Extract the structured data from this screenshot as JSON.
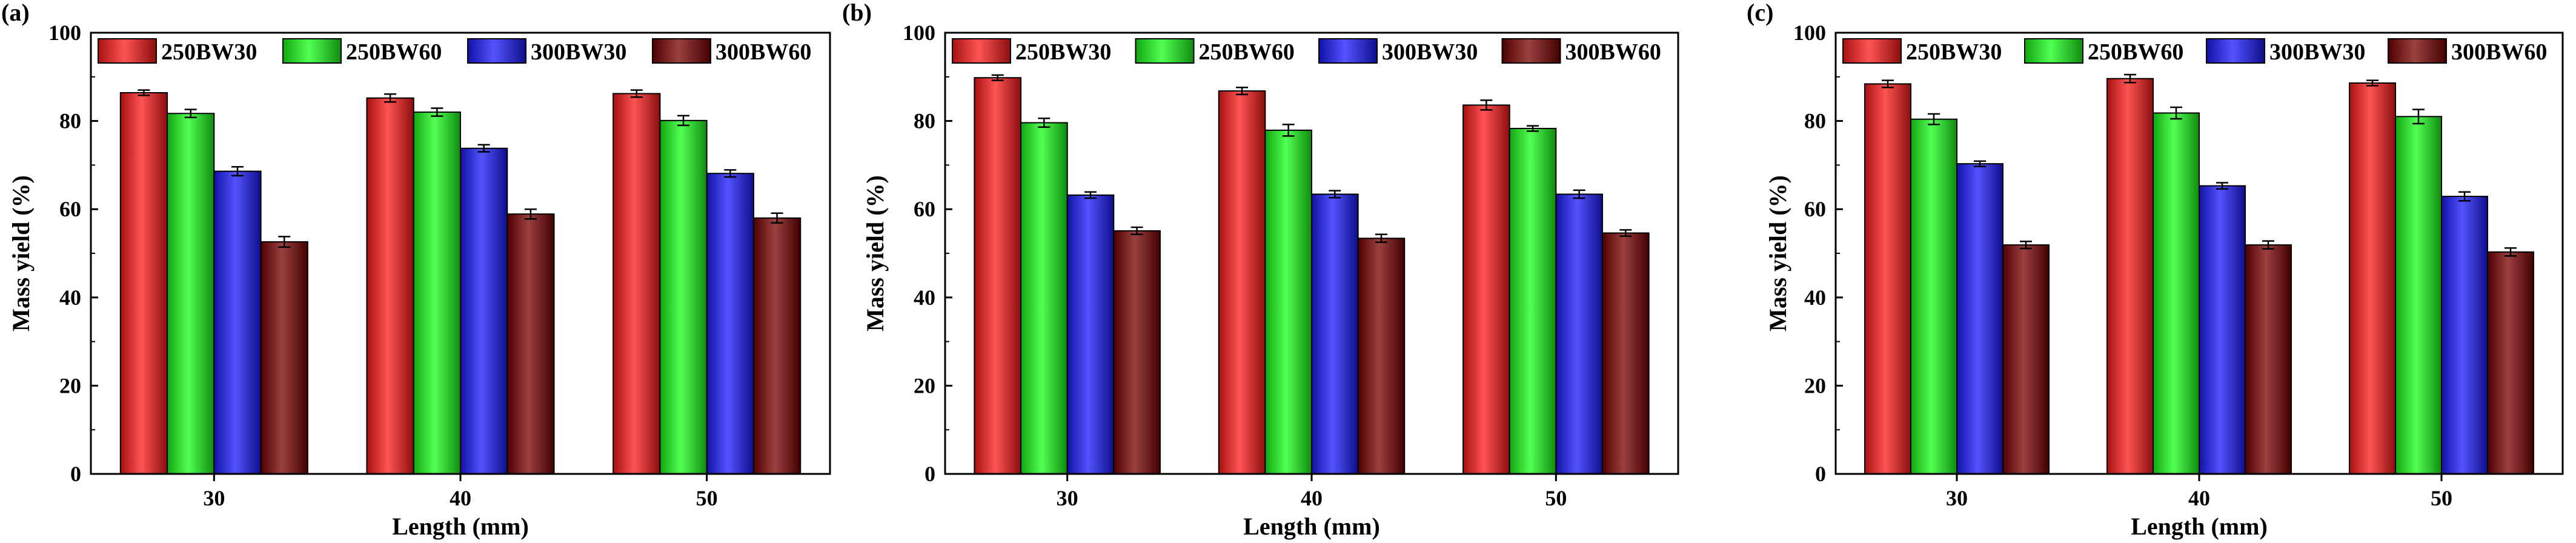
{
  "series_names": [
    "250BW30",
    "250BW60",
    "300BW30",
    "300BW60"
  ],
  "series_colors": [
    "#ff1a1a",
    "#1aff1a",
    "#1a1aff",
    "#7a0000"
  ],
  "chart_data": [
    {
      "type": "bar",
      "panel_label": "(a)",
      "xlabel": "Length (mm)",
      "ylabel": "Mass yield (%)",
      "ylim": [
        0,
        100
      ],
      "yticks": [
        "0",
        "20",
        "40",
        "60",
        "80",
        "100"
      ],
      "categories": [
        "30",
        "40",
        "50"
      ],
      "legend_position": "top",
      "series": [
        {
          "name": "250BW30",
          "values": [
            86.4,
            85.2,
            86.2
          ],
          "errors": [
            0.6,
            0.9,
            0.8
          ]
        },
        {
          "name": "250BW60",
          "values": [
            81.7,
            82.0,
            80.1
          ],
          "errors": [
            0.9,
            0.9,
            1.1
          ]
        },
        {
          "name": "300BW30",
          "values": [
            68.6,
            73.8,
            68.1
          ],
          "errors": [
            1.0,
            0.8,
            0.8
          ]
        },
        {
          "name": "300BW60",
          "values": [
            52.6,
            58.9,
            58.0
          ],
          "errors": [
            1.2,
            1.1,
            1.1
          ]
        }
      ]
    },
    {
      "type": "bar",
      "panel_label": "(b)",
      "xlabel": "Length (mm)",
      "ylabel": "Mass yield (%)",
      "ylim": [
        0,
        100
      ],
      "yticks": [
        "0",
        "20",
        "40",
        "60",
        "80",
        "100"
      ],
      "categories": [
        "30",
        "40",
        "50"
      ],
      "legend_position": "top",
      "series": [
        {
          "name": "250BW30",
          "values": [
            89.8,
            86.8,
            83.6
          ],
          "errors": [
            0.6,
            0.8,
            1.1
          ]
        },
        {
          "name": "250BW60",
          "values": [
            79.6,
            77.9,
            78.3
          ],
          "errors": [
            1.0,
            1.3,
            0.6
          ]
        },
        {
          "name": "300BW30",
          "values": [
            63.2,
            63.4,
            63.4
          ],
          "errors": [
            0.7,
            0.8,
            0.9
          ]
        },
        {
          "name": "300BW60",
          "values": [
            55.1,
            53.4,
            54.6
          ],
          "errors": [
            0.8,
            0.9,
            0.7
          ]
        }
      ]
    },
    {
      "type": "bar",
      "panel_label": "(c)",
      "xlabel": "Length (mm)",
      "ylabel": "Mass yield (%)",
      "ylim": [
        0,
        100
      ],
      "yticks": [
        "0",
        "20",
        "40",
        "60",
        "80",
        "100"
      ],
      "categories": [
        "30",
        "40",
        "50"
      ],
      "legend_position": "top",
      "series": [
        {
          "name": "250BW30",
          "values": [
            88.4,
            89.6,
            88.6
          ],
          "errors": [
            0.8,
            0.9,
            0.6
          ]
        },
        {
          "name": "250BW60",
          "values": [
            80.4,
            81.8,
            81.0
          ],
          "errors": [
            1.2,
            1.3,
            1.6
          ]
        },
        {
          "name": "300BW30",
          "values": [
            70.3,
            65.3,
            62.9
          ],
          "errors": [
            0.6,
            0.7,
            1.0
          ]
        },
        {
          "name": "300BW60",
          "values": [
            51.9,
            51.9,
            50.3
          ],
          "errors": [
            0.8,
            0.9,
            0.9
          ]
        }
      ]
    }
  ]
}
